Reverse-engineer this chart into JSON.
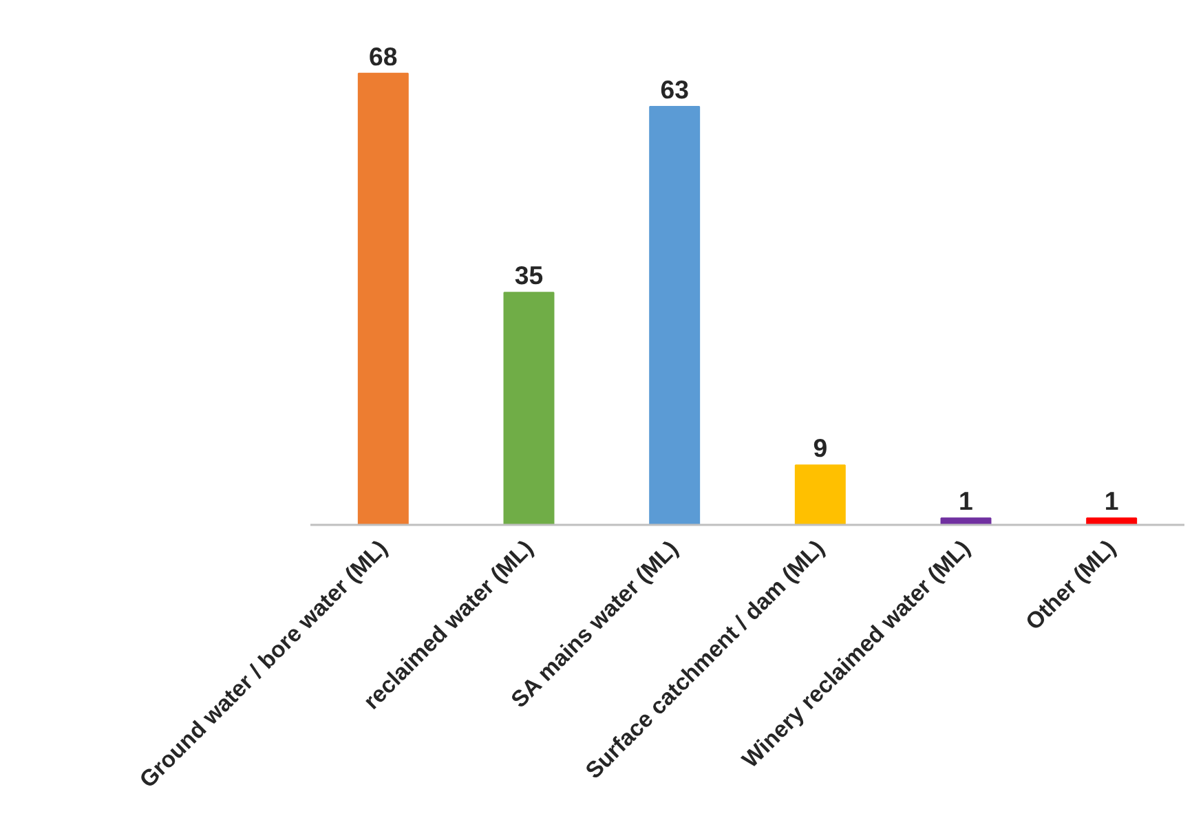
{
  "chart_data": {
    "type": "bar",
    "categories": [
      "Ground water / bore water (ML)",
      "reclaimed water (ML)",
      "SA mains water (ML)",
      "Surface catchment / dam (ML)",
      "Winery reclaimed water (ML)",
      "Other (ML)"
    ],
    "values": [
      68,
      35,
      63,
      9,
      1,
      1
    ],
    "colors": [
      "#ed7d31",
      "#70ad47",
      "#5b9bd5",
      "#ffc000",
      "#7030a0",
      "#ff0000"
    ],
    "data_labels": true
  }
}
